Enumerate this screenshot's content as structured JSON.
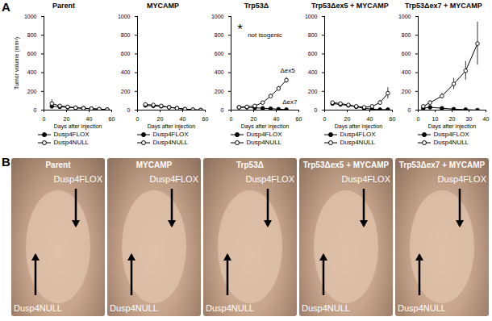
{
  "chart_data": [
    {
      "type": "line",
      "title": "Parent",
      "x_label": "Days after injection",
      "y_label": "Tumor volume (mm³)",
      "xlim": [
        0,
        60
      ],
      "xticks": [
        0,
        20,
        40,
        60
      ],
      "ylim": [
        0,
        1000
      ],
      "yticks": [
        0,
        200,
        400,
        600,
        800,
        1000
      ],
      "series": [
        {
          "name": "Dusp4FLOX",
          "color": "#000000",
          "marker": "filled",
          "x": [
            7,
            14,
            21,
            28,
            35,
            42,
            49,
            56
          ],
          "values": [
            40,
            35,
            30,
            25,
            20,
            15,
            10,
            5
          ]
        },
        {
          "name": "Dusp4NULL",
          "color": "#000000",
          "marker": "open",
          "x": [
            7,
            14,
            21,
            28,
            35,
            42,
            49,
            56
          ],
          "values": [
            70,
            45,
            35,
            25,
            20,
            15,
            10,
            5
          ],
          "errors": [
            40,
            15,
            10,
            5,
            5,
            5,
            5,
            5
          ]
        }
      ]
    },
    {
      "type": "line",
      "title": "MYCAMP",
      "x_label": "Days after injection",
      "xlim": [
        0,
        60
      ],
      "xticks": [
        0,
        20,
        40,
        60
      ],
      "ylim": [
        0,
        1000
      ],
      "yticks": [
        0,
        200,
        400,
        600,
        800,
        1000
      ],
      "series": [
        {
          "name": "Dusp4FLOX",
          "color": "#000000",
          "marker": "filled",
          "x": [
            7,
            14,
            21,
            28,
            35,
            42,
            49,
            56
          ],
          "values": [
            50,
            45,
            40,
            30,
            20,
            10,
            5,
            0
          ]
        },
        {
          "name": "Dusp4NULL",
          "color": "#000000",
          "marker": "open",
          "x": [
            7,
            14,
            21,
            28,
            35,
            42,
            49,
            56
          ],
          "values": [
            60,
            55,
            45,
            30,
            20,
            10,
            5,
            0
          ]
        }
      ]
    },
    {
      "type": "line",
      "title": "Trp53Δ",
      "x_label": "Days after injection",
      "xlim": [
        0,
        60
      ],
      "xticks": [
        0,
        20,
        40,
        60
      ],
      "ylim": [
        0,
        1000
      ],
      "yticks": [
        0,
        200,
        400,
        600,
        800,
        1000
      ],
      "annotations": [
        {
          "text": "*",
          "x": 8,
          "y": 860
        },
        {
          "text": "not isogenic",
          "x": 30,
          "y": 800
        },
        {
          "text": "Δex5",
          "x": 50,
          "y": 420
        },
        {
          "text": "Δex7",
          "x": 52,
          "y": 90
        }
      ],
      "series": [
        {
          "name": "Dusp4FLOX",
          "color": "#000000",
          "marker": "filled",
          "x": [
            7,
            14,
            21,
            28,
            35,
            42,
            49
          ],
          "values": [
            30,
            30,
            25,
            20,
            15,
            10,
            5
          ]
        },
        {
          "name": "Dusp4NULL",
          "color": "#000000",
          "marker": "open",
          "x": [
            7,
            14,
            21,
            28,
            35,
            42,
            49
          ],
          "values": [
            30,
            35,
            45,
            80,
            150,
            230,
            320
          ],
          "errors": [
            5,
            5,
            10,
            10,
            20,
            25,
            30
          ]
        }
      ]
    },
    {
      "type": "line",
      "title": "Trp53Δex5 + MYCAMP",
      "x_label": "Days after injection",
      "xlim": [
        0,
        60
      ],
      "xticks": [
        0,
        20,
        40,
        60
      ],
      "ylim": [
        0,
        1000
      ],
      "yticks": [
        0,
        200,
        400,
        600,
        800,
        1000
      ],
      "series": [
        {
          "name": "Dusp4FLOX",
          "color": "#000000",
          "marker": "filled",
          "x": [
            7,
            14,
            21,
            28,
            35,
            42,
            49,
            56
          ],
          "values": [
            70,
            60,
            50,
            35,
            20,
            10,
            5,
            5
          ]
        },
        {
          "name": "Dusp4NULL",
          "color": "#000000",
          "marker": "open",
          "x": [
            7,
            14,
            21,
            28,
            35,
            42,
            49,
            56
          ],
          "values": [
            80,
            70,
            55,
            40,
            30,
            40,
            80,
            180
          ],
          "errors": [
            10,
            10,
            10,
            10,
            10,
            15,
            25,
            60
          ]
        }
      ]
    },
    {
      "type": "line",
      "title": "Trp53Δex7 + MYCAMP",
      "x_label": "Days after injection",
      "xlim": [
        0,
        40
      ],
      "xticks": [
        0,
        10,
        20,
        30,
        40
      ],
      "ylim": [
        0,
        1000
      ],
      "yticks": [
        0,
        200,
        400,
        600,
        800,
        1000
      ],
      "series": [
        {
          "name": "Dusp4FLOX",
          "color": "#000000",
          "marker": "filled",
          "x": [
            3,
            7,
            14,
            21,
            28,
            35
          ],
          "values": [
            20,
            30,
            20,
            10,
            5,
            0
          ]
        },
        {
          "name": "Dusp4NULL",
          "color": "#000000",
          "marker": "open",
          "x": [
            3,
            7,
            14,
            21,
            28,
            35
          ],
          "values": [
            40,
            80,
            150,
            280,
            420,
            710
          ],
          "errors": [
            10,
            20,
            30,
            60,
            100,
            230
          ]
        }
      ]
    }
  ],
  "figure": {
    "panel_labels": [
      "A",
      "B"
    ],
    "photos": [
      {
        "title": "Parent",
        "labels": [
          "Dusp4FLOX",
          "Dusp4NULL"
        ]
      },
      {
        "title": "MYCAMP",
        "labels": [
          "Dusp4FLOX",
          "Dusp4NULL"
        ]
      },
      {
        "title": "Trp53Δ",
        "labels": [
          "Dusp4FLOX",
          "Dusp4NULL"
        ]
      },
      {
        "title": "Trp53Δex5 + MYCAMP",
        "labels": [
          "Dusp4FLOX",
          "Dusp4NULL"
        ]
      },
      {
        "title": "Trp53Δex7 + MYCAMP",
        "labels": [
          "Dusp4FLOX",
          "Dusp4NULL"
        ]
      }
    ]
  }
}
